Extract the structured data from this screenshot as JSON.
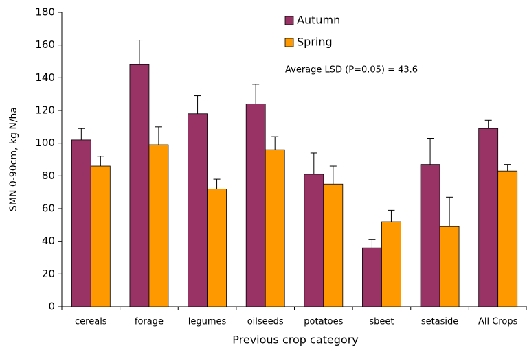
{
  "chart_data": {
    "type": "bar",
    "y_label": "SMN 0-90cm, kg N/ha",
    "x_label": "Previous crop category",
    "annotation": "Average LSD (P=0.05) = 43.6",
    "categories": [
      "cereals",
      "forage",
      "legumes",
      "oilseeds",
      "potatoes",
      "sbeet",
      "setaside",
      "All Crops"
    ],
    "series": [
      {
        "name": "Autumn",
        "color": "#993366",
        "values": [
          102,
          148,
          118,
          124,
          81,
          36,
          87,
          109
        ],
        "errors": [
          7,
          15,
          11,
          12,
          13,
          5,
          16,
          5
        ]
      },
      {
        "name": "Spring",
        "color": "#ff9900",
        "values": [
          86,
          99,
          72,
          96,
          75,
          52,
          49,
          83
        ],
        "errors": [
          6,
          11,
          6,
          8,
          11,
          7,
          18,
          4
        ]
      }
    ],
    "ylim": [
      0,
      180
    ],
    "yticks": [
      0,
      20,
      40,
      60,
      80,
      100,
      120,
      140,
      160,
      180
    ]
  }
}
